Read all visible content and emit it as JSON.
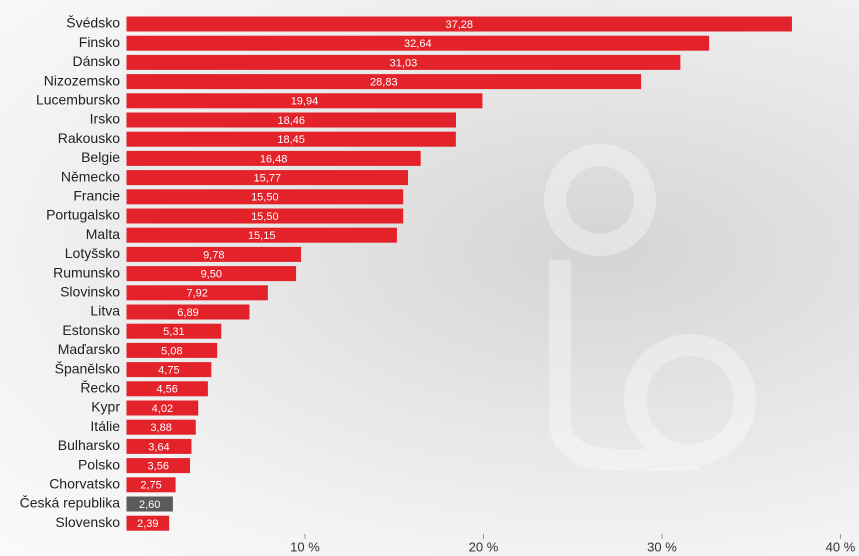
{
  "chart_data": {
    "type": "bar",
    "orientation": "horizontal",
    "categories": [
      "Švédsko",
      "Finsko",
      "Dánsko",
      "Nizozemsko",
      "Lucembursko",
      "Irsko",
      "Rakousko",
      "Belgie",
      "Německo",
      "Francie",
      "Portugalsko",
      "Malta",
      "Lotyšsko",
      "Rumunsko",
      "Slovinsko",
      "Litva",
      "Estonsko",
      "Maďarsko",
      "Španělsko",
      "Řecko",
      "Kypr",
      "Itálie",
      "Bulharsko",
      "Polsko",
      "Chorvatsko",
      "Česká republika",
      "Slovensko"
    ],
    "values": [
      37.28,
      32.64,
      31.03,
      28.83,
      19.94,
      18.46,
      18.45,
      16.48,
      15.77,
      15.5,
      15.5,
      15.15,
      9.78,
      9.5,
      7.92,
      6.89,
      5.31,
      5.08,
      4.75,
      4.56,
      4.02,
      3.88,
      3.64,
      3.56,
      2.75,
      2.6,
      2.39
    ],
    "value_labels": [
      "37,28",
      "32,64",
      "31,03",
      "28,83",
      "19,94",
      "18,46",
      "18,45",
      "16,48",
      "15,77",
      "15,50",
      "15,50",
      "15,15",
      "9,78",
      "9,50",
      "7,92",
      "6,89",
      "5,31",
      "5,08",
      "4,75",
      "4,56",
      "4,02",
      "3,88",
      "3,64",
      "3,56",
      "2,75",
      "2,60",
      "2,39"
    ],
    "colors": [
      "#e3222a",
      "#e3222a",
      "#e3222a",
      "#e3222a",
      "#e3222a",
      "#e3222a",
      "#e3222a",
      "#e3222a",
      "#e3222a",
      "#e3222a",
      "#e3222a",
      "#e3222a",
      "#e3222a",
      "#e3222a",
      "#e3222a",
      "#e3222a",
      "#e3222a",
      "#e3222a",
      "#e3222a",
      "#e3222a",
      "#e3222a",
      "#e3222a",
      "#e3222a",
      "#e3222a",
      "#e3222a",
      "#5b5b5b",
      "#e3222a"
    ],
    "xlim": [
      0,
      40
    ],
    "xticks": [
      {
        "value": 10,
        "label": "10 %"
      },
      {
        "value": 20,
        "label": "20 %"
      },
      {
        "value": 30,
        "label": "30 %"
      },
      {
        "value": 40,
        "label": "40 %"
      }
    ]
  }
}
